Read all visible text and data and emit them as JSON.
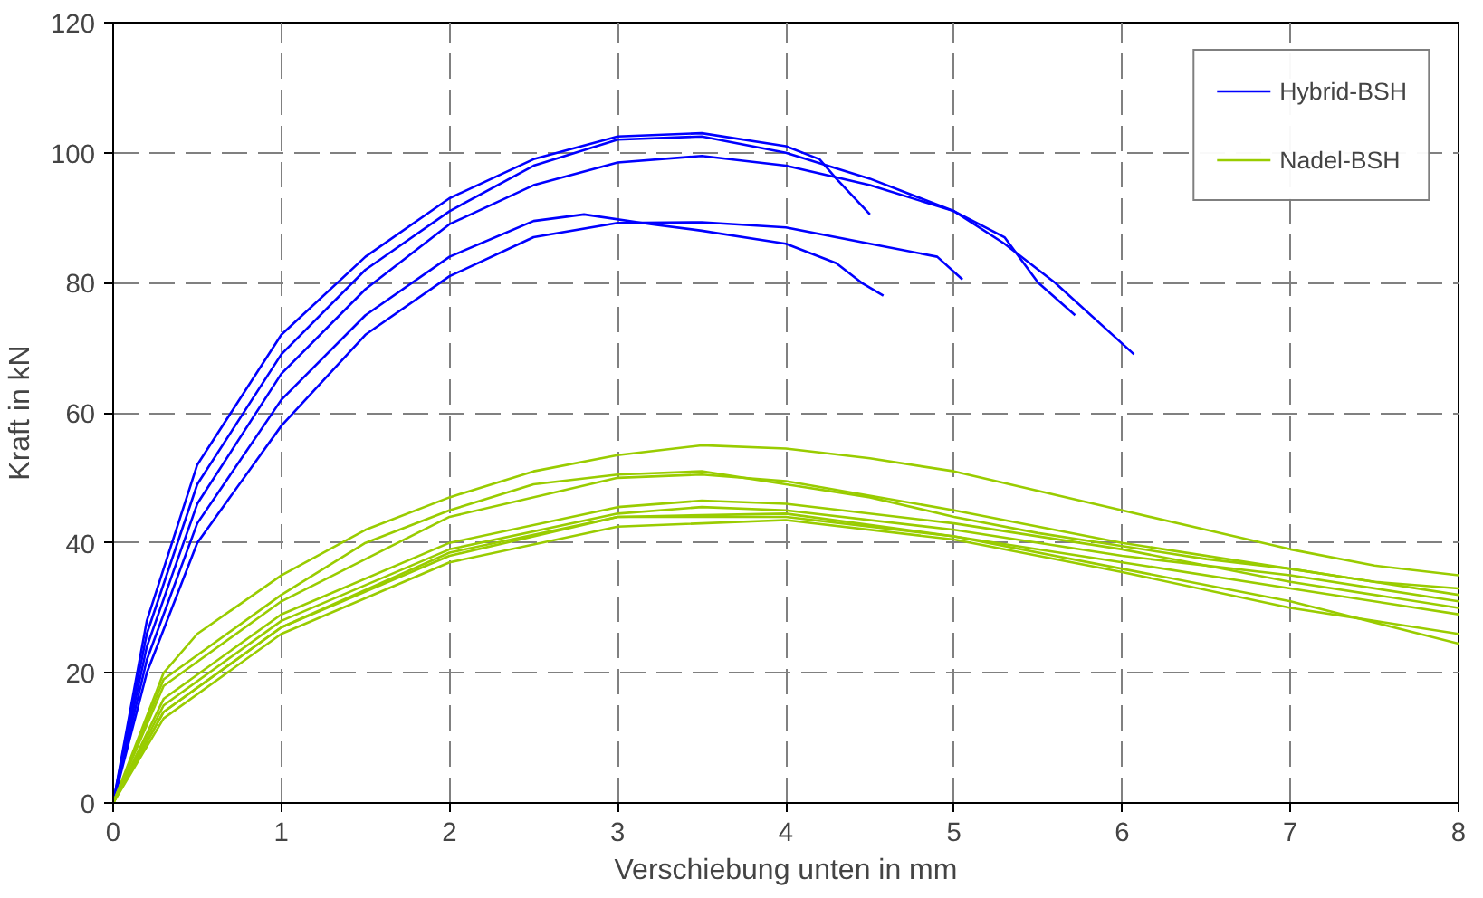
{
  "chart_data": {
    "type": "line",
    "xlabel": "Verschiebung unten in mm",
    "ylabel": "Kraft in kN",
    "xlim": [
      0,
      8
    ],
    "ylim": [
      0,
      120
    ],
    "xticks": [
      0,
      1,
      2,
      3,
      4,
      5,
      6,
      7,
      8
    ],
    "yticks": [
      0,
      20,
      40,
      60,
      80,
      100,
      120
    ],
    "grid": true,
    "legend": "top right",
    "marker": "none",
    "line_style": "solid",
    "series": [
      {
        "name": "Hybrid-BSH",
        "color": "#0000ff",
        "x": [
          0,
          0.2,
          0.5,
          1,
          1.5,
          2,
          2.5,
          3,
          3.5,
          4,
          4.2,
          4.3,
          4.5
        ],
        "values": [
          0,
          28,
          52,
          72,
          84,
          93,
          99,
          102.5,
          103,
          101,
          99,
          96,
          90.5
        ]
      },
      {
        "color": "#0000ff",
        "x": [
          0,
          0.2,
          0.5,
          1,
          1.5,
          2,
          2.5,
          3,
          3.5,
          4,
          4.5,
          5,
          5.3,
          5.5,
          5.72
        ],
        "values": [
          0,
          26,
          49,
          69,
          82,
          91,
          98,
          102,
          102.5,
          100,
          96,
          91,
          87,
          80,
          75
        ]
      },
      {
        "color": "#0000ff",
        "x": [
          0,
          0.2,
          0.5,
          1,
          1.5,
          2,
          2.5,
          3,
          3.5,
          4,
          4.5,
          5,
          5.3,
          5.6,
          6.07
        ],
        "values": [
          0,
          24,
          46,
          66,
          79,
          89,
          95,
          98.5,
          99.5,
          98,
          95,
          91,
          86,
          80,
          69
        ]
      },
      {
        "color": "#0000ff",
        "x": [
          0,
          0.2,
          0.5,
          1,
          1.5,
          2,
          2.5,
          2.8,
          3.2,
          3.5,
          4,
          4.3,
          4.45,
          4.58
        ],
        "values": [
          0,
          22,
          43,
          62,
          75,
          84,
          89.5,
          90.5,
          89,
          88,
          86,
          83,
          80,
          78
        ]
      },
      {
        "color": "#0000ff",
        "x": [
          0,
          0.2,
          0.5,
          1,
          1.5,
          2,
          2.5,
          3,
          3.5,
          4,
          4.5,
          4.9,
          5.05
        ],
        "values": [
          0,
          20,
          40,
          58,
          72,
          81,
          87,
          89.2,
          89.3,
          88.5,
          86,
          84,
          80.5
        ]
      },
      {
        "name": "Nadel-BSH",
        "color": "#99cc00",
        "x": [
          0,
          0.3,
          0.5,
          1,
          1.5,
          2,
          2.5,
          3,
          3.5,
          4,
          4.5,
          5,
          5.5,
          6,
          6.5,
          7,
          7.5,
          8
        ],
        "values": [
          0,
          20,
          26,
          35,
          42,
          47,
          51,
          53.5,
          55,
          54.5,
          53,
          51,
          48,
          45,
          42,
          39,
          36.5,
          35
        ]
      },
      {
        "color": "#99cc00",
        "x": [
          0,
          0.3,
          1,
          1.5,
          2,
          2.5,
          3,
          3.5,
          4,
          4.5,
          5,
          5.5,
          6,
          6.5,
          7,
          7.5,
          8
        ],
        "values": [
          0,
          19,
          32,
          40,
          45,
          49,
          50.5,
          51,
          49,
          47,
          44,
          41.5,
          39.5,
          37.5,
          36,
          34,
          33
        ]
      },
      {
        "color": "#99cc00",
        "x": [
          0,
          0.3,
          1,
          2,
          3,
          3.5,
          4,
          5,
          6,
          7,
          8
        ],
        "values": [
          0,
          18,
          31,
          44,
          50,
          50.5,
          49.5,
          45,
          40,
          36,
          32
        ]
      },
      {
        "color": "#99cc00",
        "x": [
          0,
          0.3,
          1,
          2,
          3,
          3.5,
          4,
          5,
          6,
          7,
          8
        ],
        "values": [
          0,
          16,
          29,
          40,
          45.5,
          46.5,
          46,
          43,
          39,
          34,
          30
        ]
      },
      {
        "color": "#99cc00",
        "x": [
          0,
          0.3,
          1,
          2,
          3,
          3.5,
          4,
          5,
          6,
          7,
          8
        ],
        "values": [
          0,
          15,
          28,
          39,
          44.5,
          45.5,
          45,
          42,
          38,
          35,
          31
        ]
      },
      {
        "color": "#99cc00",
        "x": [
          0,
          0.3,
          1,
          2,
          3,
          4,
          5,
          6,
          7,
          8
        ],
        "values": [
          0,
          14,
          27,
          38,
          44,
          44,
          41,
          37,
          33,
          29
        ]
      },
      {
        "color": "#99cc00",
        "x": [
          0,
          0.3,
          1,
          2,
          3,
          4,
          5,
          6,
          7,
          8
        ],
        "values": [
          0,
          13,
          26,
          37,
          42.5,
          43.5,
          40.5,
          35.5,
          30,
          26
        ]
      },
      {
        "color": "#99cc00",
        "x": [
          0,
          0.3,
          1,
          2,
          3,
          4,
          5,
          6,
          7,
          8
        ],
        "values": [
          0,
          14,
          27,
          38.5,
          44,
          44.5,
          41,
          36,
          31,
          24.5
        ]
      }
    ]
  }
}
